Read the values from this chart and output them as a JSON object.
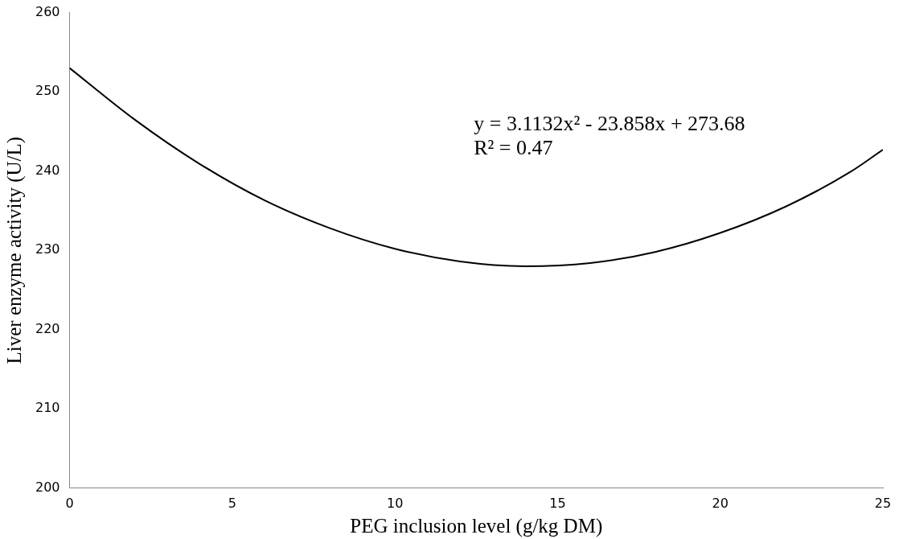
{
  "chart_data": {
    "type": "line",
    "xlabel": "PEG inclusion level (g/kg DM)",
    "ylabel": "Liver enzyme activity (U/L)",
    "annotations": [
      "y = 3.1132x² - 23.858x + 273.68",
      "R² = 0.47"
    ],
    "x": [
      0,
      2,
      4,
      6,
      8,
      10,
      12,
      14,
      16,
      18,
      20,
      22,
      24,
      25
    ],
    "series": [
      {
        "color": "#000000",
        "values": [
          253,
          246.5,
          240.9,
          236.3,
          232.8,
          230.2,
          228.6,
          228,
          228.4,
          229.8,
          232.2,
          235.5,
          239.9,
          242.7
        ]
      }
    ],
    "xlim": [
      0,
      25
    ],
    "xticks": [
      0,
      5,
      10,
      15,
      20,
      25
    ],
    "ylim": [
      200,
      260
    ],
    "yticks": [
      200,
      210,
      220,
      230,
      240,
      250,
      260
    ],
    "grid": false,
    "legend": false,
    "marker": "none",
    "line_style": "solid"
  }
}
